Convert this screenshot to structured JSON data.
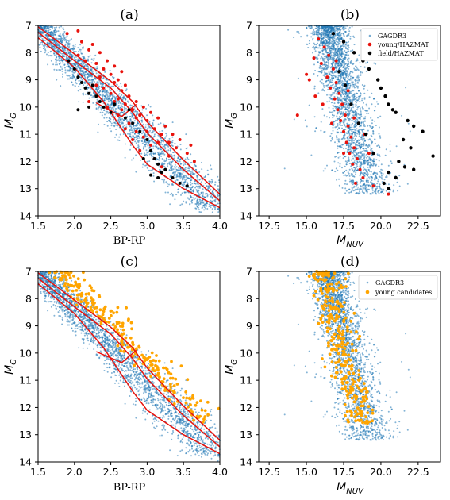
{
  "colors": {
    "gagdr3": "#1f77b4",
    "young_hazmat": "#e8120c",
    "field_hazmat": "#000000",
    "young_candidates": "#ffa500",
    "isochrone": "#e8120c"
  },
  "chart_data": [
    {
      "type": "scatter",
      "panel": "(a)",
      "title": "(a)",
      "xlabel": "BP-RP",
      "ylabel": "M_G",
      "xlim": [
        1.5,
        4.0
      ],
      "ylim": [
        14,
        7
      ],
      "y_inverted": true,
      "xticks": [
        "1.5",
        "2.0",
        "2.5",
        "3.0",
        "3.5",
        "4.0"
      ],
      "yticks": [
        "7",
        "8",
        "9",
        "10",
        "11",
        "12",
        "13",
        "14"
      ],
      "legend": null,
      "background_series": {
        "name": "GAGDR3",
        "shape": "band",
        "x_color_index": "BP-RP"
      },
      "series": [
        {
          "name": "young/HAZMAT",
          "color_key": "young_hazmat",
          "points": [
            [
              1.9,
              7.3
            ],
            [
              2.05,
              7.2
            ],
            [
              2.1,
              7.6
            ],
            [
              2.2,
              7.9
            ],
            [
              2.25,
              7.7
            ],
            [
              2.05,
              8.1
            ],
            [
              2.15,
              8.3
            ],
            [
              2.3,
              8.4
            ],
            [
              2.35,
              8.0
            ],
            [
              2.4,
              8.6
            ],
            [
              2.45,
              8.3
            ],
            [
              2.5,
              8.8
            ],
            [
              2.55,
              8.5
            ],
            [
              2.6,
              9.0
            ],
            [
              2.65,
              8.7
            ],
            [
              2.7,
              9.2
            ],
            [
              2.4,
              9.3
            ],
            [
              2.5,
              9.5
            ],
            [
              2.55,
              9.1
            ],
            [
              2.6,
              9.7
            ],
            [
              2.65,
              9.4
            ],
            [
              2.7,
              9.9
            ],
            [
              2.75,
              9.6
            ],
            [
              2.8,
              10.1
            ],
            [
              2.85,
              9.8
            ],
            [
              2.9,
              10.3
            ],
            [
              2.95,
              10.0
            ],
            [
              3.0,
              10.5
            ],
            [
              3.05,
              10.2
            ],
            [
              3.1,
              10.8
            ],
            [
              3.15,
              10.4
            ],
            [
              3.2,
              11.0
            ],
            [
              3.25,
              10.7
            ],
            [
              3.3,
              11.3
            ],
            [
              3.35,
              11.0
            ],
            [
              3.4,
              11.5
            ],
            [
              3.45,
              11.2
            ],
            [
              3.55,
              11.7
            ],
            [
              3.6,
              11.4
            ],
            [
              3.65,
              12.0
            ],
            [
              2.75,
              10.6
            ],
            [
              2.85,
              10.9
            ],
            [
              2.95,
              11.1
            ],
            [
              3.05,
              11.4
            ],
            [
              2.2,
              9.8
            ],
            [
              2.3,
              9.2
            ],
            [
              2.45,
              10.0
            ],
            [
              2.6,
              10.3
            ],
            [
              2.7,
              10.8
            ],
            [
              2.8,
              11.2
            ],
            [
              2.9,
              11.6
            ],
            [
              3.1,
              11.9
            ],
            [
              3.2,
              12.2
            ],
            [
              2.35,
              8.9
            ],
            [
              2.55,
              9.8
            ],
            [
              2.65,
              10.1
            ],
            [
              2.85,
              10.4
            ],
            [
              3.0,
              10.9
            ],
            [
              3.15,
              11.3
            ],
            [
              3.3,
              11.8
            ]
          ]
        },
        {
          "name": "field/HAZMAT",
          "color_key": "field_hazmat",
          "points": [
            [
              1.92,
              8.3
            ],
            [
              2.0,
              8.6
            ],
            [
              2.05,
              8.9
            ],
            [
              2.1,
              9.1
            ],
            [
              2.15,
              9.3
            ],
            [
              2.2,
              9.5
            ],
            [
              2.25,
              9.2
            ],
            [
              2.3,
              9.6
            ],
            [
              2.35,
              9.8
            ],
            [
              2.4,
              10.0
            ],
            [
              2.05,
              10.1
            ],
            [
              2.2,
              10.0
            ],
            [
              2.5,
              10.2
            ],
            [
              2.55,
              9.9
            ],
            [
              2.7,
              10.4
            ],
            [
              2.75,
              10.1
            ],
            [
              2.8,
              10.6
            ],
            [
              2.9,
              10.9
            ],
            [
              3.0,
              11.2
            ],
            [
              3.05,
              11.6
            ],
            [
              3.1,
              11.9
            ],
            [
              3.15,
              12.1
            ],
            [
              3.2,
              12.4
            ],
            [
              3.25,
              12.3
            ],
            [
              3.35,
              12.6
            ],
            [
              3.45,
              12.8
            ],
            [
              3.55,
              12.9
            ],
            [
              3.05,
              12.5
            ],
            [
              3.15,
              12.6
            ],
            [
              2.95,
              11.9
            ]
          ]
        }
      ],
      "curves": [
        {
          "name": "upper",
          "points": [
            [
              1.5,
              7.05
            ],
            [
              2.0,
              8.05
            ],
            [
              2.5,
              9.05
            ],
            [
              2.8,
              9.8
            ],
            [
              3.0,
              10.55
            ],
            [
              3.5,
              11.95
            ],
            [
              4.0,
              13.2
            ]
          ]
        },
        {
          "name": "middle",
          "points": [
            [
              1.5,
              7.25
            ],
            [
              2.0,
              8.3
            ],
            [
              2.5,
              9.3
            ],
            [
              2.8,
              10.2
            ],
            [
              3.0,
              10.95
            ],
            [
              3.5,
              12.3
            ],
            [
              4.0,
              13.45
            ]
          ]
        },
        {
          "name": "lower",
          "points": [
            [
              1.5,
              7.45
            ],
            [
              2.0,
              8.55
            ],
            [
              2.4,
              9.8
            ],
            [
              2.6,
              10.6
            ],
            [
              2.8,
              11.4
            ],
            [
              3.0,
              12.1
            ],
            [
              3.5,
              13.0
            ],
            [
              4.0,
              13.7
            ]
          ]
        },
        {
          "name": "cut",
          "points": [
            [
              2.3,
              9.85
            ],
            [
              2.65,
              10.35
            ],
            [
              2.85,
              9.9
            ]
          ]
        }
      ]
    },
    {
      "type": "scatter",
      "panel": "(b)",
      "title": "(b)",
      "xlabel": "M_NUV",
      "ylabel": "M_G",
      "xlim": [
        11.8,
        24.0
      ],
      "ylim": [
        14,
        7
      ],
      "y_inverted": true,
      "xticks": [
        "12.5",
        "15.0",
        "17.5",
        "20.0",
        "22.5"
      ],
      "yticks": [
        "7",
        "8",
        "9",
        "10",
        "11",
        "12",
        "13",
        "14"
      ],
      "legend": {
        "placement": "top-right",
        "entries": [
          "GAGDR3",
          "young/HAZMAT",
          "field/HAZMAT"
        ]
      },
      "background_series": {
        "name": "GAGDR3",
        "shape": "diagonal-band"
      },
      "series": [
        {
          "name": "young/HAZMAT",
          "color_key": "young_hazmat",
          "points": [
            [
              15.8,
              7.5
            ],
            [
              16.2,
              7.8
            ],
            [
              16.5,
              8.1
            ],
            [
              16.0,
              8.4
            ],
            [
              16.8,
              8.6
            ],
            [
              16.4,
              8.9
            ],
            [
              17.0,
              9.1
            ],
            [
              16.6,
              9.3
            ],
            [
              17.2,
              9.5
            ],
            [
              16.9,
              9.7
            ],
            [
              17.4,
              9.9
            ],
            [
              17.1,
              10.1
            ],
            [
              17.6,
              10.3
            ],
            [
              17.3,
              10.5
            ],
            [
              17.8,
              10.7
            ],
            [
              17.5,
              10.9
            ],
            [
              18.0,
              11.1
            ],
            [
              17.7,
              11.3
            ],
            [
              18.2,
              11.5
            ],
            [
              17.9,
              11.7
            ],
            [
              18.4,
              11.9
            ],
            [
              18.1,
              12.1
            ],
            [
              18.6,
              12.3
            ],
            [
              18.8,
              12.6
            ],
            [
              19.5,
              12.9
            ],
            [
              20.5,
              13.2
            ],
            [
              14.4,
              10.3
            ],
            [
              15.2,
              9.0
            ],
            [
              15.5,
              8.2
            ],
            [
              16.1,
              9.9
            ],
            [
              16.7,
              10.6
            ],
            [
              17.5,
              11.7
            ],
            [
              18.3,
              12.8
            ],
            [
              17.0,
              8.3
            ],
            [
              17.8,
              9.4
            ],
            [
              18.2,
              10.4
            ],
            [
              18.9,
              11.0
            ],
            [
              19.2,
              11.7
            ],
            [
              15.0,
              8.8
            ],
            [
              15.6,
              9.6
            ]
          ]
        },
        {
          "name": "field/HAZMAT",
          "color_key": "field_hazmat",
          "points": [
            [
              16.8,
              7.3
            ],
            [
              17.5,
              7.6
            ],
            [
              18.2,
              8.0
            ],
            [
              18.8,
              8.3
            ],
            [
              19.2,
              8.6
            ],
            [
              19.8,
              9.0
            ],
            [
              20.0,
              9.3
            ],
            [
              20.3,
              9.6
            ],
            [
              20.5,
              9.9
            ],
            [
              20.8,
              10.1
            ],
            [
              21.0,
              10.2
            ],
            [
              21.8,
              10.5
            ],
            [
              22.2,
              10.7
            ],
            [
              22.8,
              10.9
            ],
            [
              21.5,
              11.2
            ],
            [
              22.0,
              11.5
            ],
            [
              23.5,
              11.8
            ],
            [
              21.2,
              12.0
            ],
            [
              21.6,
              12.2
            ],
            [
              22.2,
              12.3
            ],
            [
              20.5,
              12.4
            ],
            [
              21.0,
              12.6
            ],
            [
              20.2,
              12.8
            ],
            [
              19.5,
              11.7
            ],
            [
              19.0,
              11.0
            ],
            [
              18.5,
              10.6
            ],
            [
              18.0,
              9.9
            ],
            [
              17.6,
              9.2
            ],
            [
              17.2,
              8.7
            ],
            [
              20.5,
              13.0
            ]
          ]
        }
      ]
    },
    {
      "type": "scatter",
      "panel": "(c)",
      "title": "(c)",
      "xlabel": "BP-RP",
      "ylabel": "M_G",
      "xlim": [
        1.5,
        4.0
      ],
      "ylim": [
        14,
        7
      ],
      "y_inverted": true,
      "xticks": [
        "1.5",
        "2.0",
        "2.5",
        "3.0",
        "3.5",
        "4.0"
      ],
      "yticks": [
        "7",
        "8",
        "9",
        "10",
        "11",
        "12",
        "13",
        "14"
      ],
      "legend": null,
      "background_series": {
        "name": "GAGDR3",
        "shape": "band"
      },
      "series": [
        {
          "name": "young candidates",
          "color_key": "young_candidates",
          "distribution": "upper-band-of-sequence"
        }
      ],
      "curves": [
        {
          "name": "upper",
          "points": [
            [
              1.5,
              7.05
            ],
            [
              2.0,
              8.05
            ],
            [
              2.5,
              9.05
            ],
            [
              2.8,
              9.8
            ],
            [
              3.0,
              10.55
            ],
            [
              3.5,
              11.95
            ],
            [
              4.0,
              13.2
            ]
          ]
        },
        {
          "name": "middle",
          "points": [
            [
              1.5,
              7.25
            ],
            [
              2.0,
              8.3
            ],
            [
              2.5,
              9.3
            ],
            [
              2.8,
              10.2
            ],
            [
              3.0,
              10.95
            ],
            [
              3.5,
              12.3
            ],
            [
              4.0,
              13.45
            ]
          ]
        },
        {
          "name": "lower",
          "points": [
            [
              1.5,
              7.45
            ],
            [
              2.0,
              8.55
            ],
            [
              2.4,
              9.8
            ],
            [
              2.6,
              10.6
            ],
            [
              2.8,
              11.4
            ],
            [
              3.0,
              12.1
            ],
            [
              3.5,
              13.0
            ],
            [
              4.0,
              13.7
            ]
          ]
        },
        {
          "name": "cut",
          "points": [
            [
              2.3,
              9.95
            ],
            [
              2.65,
              10.35
            ],
            [
              2.85,
              9.9
            ]
          ]
        }
      ]
    },
    {
      "type": "scatter",
      "panel": "(d)",
      "title": "(d)",
      "xlabel": "M_NUV",
      "ylabel": "M_G",
      "xlim": [
        11.8,
        24.0
      ],
      "ylim": [
        14,
        7
      ],
      "y_inverted": true,
      "xticks": [
        "12.5",
        "15.0",
        "17.5",
        "20.0",
        "22.5"
      ],
      "yticks": [
        "7",
        "8",
        "9",
        "10",
        "11",
        "12",
        "13",
        "14"
      ],
      "legend": {
        "placement": "top-right",
        "entries": [
          "GAGDR3",
          "young candidates"
        ]
      },
      "background_series": {
        "name": "GAGDR3",
        "shape": "diagonal-band"
      },
      "series": [
        {
          "name": "young candidates",
          "color_key": "young_candidates",
          "distribution": "left-part-of-band"
        }
      ]
    }
  ]
}
